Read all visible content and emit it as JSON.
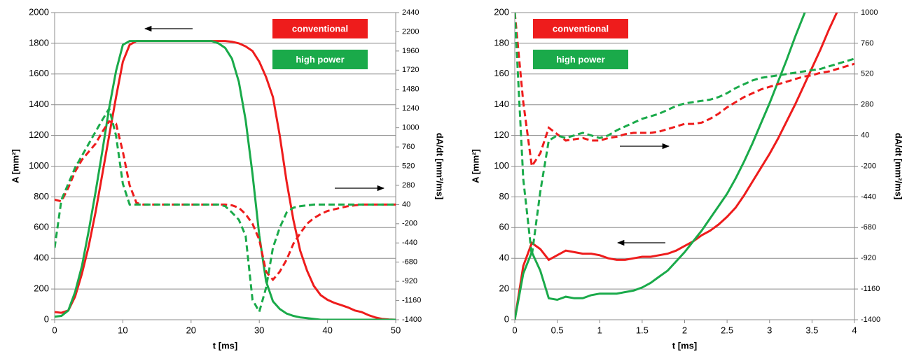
{
  "chart_data": [
    {
      "type": "line",
      "xlim": [
        0,
        50
      ],
      "xticks": [
        0,
        10,
        20,
        30,
        40,
        50
      ],
      "ylim": [
        0,
        2000
      ],
      "yticks": [
        0,
        200,
        400,
        600,
        800,
        1000,
        1200,
        1400,
        1600,
        1800,
        2000
      ],
      "y2lim": [
        -1400,
        2440
      ],
      "y2ticks": [
        -1400,
        -1160,
        -920,
        -680,
        -440,
        -200,
        40,
        280,
        520,
        760,
        1000,
        1240,
        1480,
        1720,
        1960,
        2200,
        2440
      ],
      "xlabel": "t [ms]",
      "ylabel": "A [mm²]",
      "y2label": "dA/dt [mm²/ms]",
      "grid": true,
      "legend_position": "top-right",
      "x": [
        0,
        1,
        2,
        3,
        4,
        5,
        6,
        7,
        8,
        9,
        10,
        11,
        12,
        13,
        14,
        15,
        16,
        17,
        18,
        19,
        20,
        21,
        22,
        23,
        24,
        25,
        26,
        27,
        28,
        29,
        30,
        31,
        32,
        33,
        34,
        35,
        36,
        37,
        38,
        39,
        40,
        41,
        42,
        43,
        44,
        45,
        46,
        47,
        48,
        49,
        50
      ],
      "series": [
        {
          "name": "conventional",
          "color": "#ee1c1c",
          "values": [
            50,
            45,
            60,
            150,
            300,
            480,
            700,
            950,
            1200,
            1450,
            1680,
            1790,
            1815,
            1815,
            1815,
            1815,
            1815,
            1815,
            1815,
            1815,
            1815,
            1815,
            1815,
            1815,
            1815,
            1815,
            1810,
            1800,
            1780,
            1750,
            1680,
            1580,
            1450,
            1200,
            900,
            650,
            450,
            320,
            220,
            160,
            130,
            110,
            95,
            80,
            60,
            50,
            30,
            15,
            5,
            2,
            0
          ]
        },
        {
          "name": "high power",
          "color": "#1aaa4a",
          "values": [
            20,
            25,
            60,
            180,
            350,
            580,
            830,
            1100,
            1380,
            1620,
            1790,
            1815,
            1815,
            1815,
            1815,
            1815,
            1815,
            1815,
            1815,
            1815,
            1815,
            1815,
            1815,
            1815,
            1800,
            1770,
            1700,
            1550,
            1300,
            950,
            550,
            250,
            120,
            70,
            40,
            25,
            15,
            10,
            5,
            0,
            0,
            0,
            0,
            0,
            0,
            0,
            0,
            0,
            0,
            0,
            0
          ]
        },
        {
          "color": "#ee1c1c",
          "dashed": true,
          "axis": "y2",
          "values": [
            100,
            80,
            250,
            450,
            600,
            700,
            800,
            950,
            1080,
            1050,
            700,
            280,
            60,
            40,
            40,
            40,
            40,
            40,
            40,
            40,
            40,
            40,
            40,
            40,
            40,
            40,
            30,
            0,
            -80,
            -200,
            -400,
            -800,
            -900,
            -800,
            -650,
            -450,
            -320,
            -200,
            -130,
            -80,
            -40,
            -20,
            0,
            20,
            30,
            40,
            40,
            40,
            40,
            40,
            40
          ]
        },
        {
          "color": "#1aaa4a",
          "dashed": true,
          "axis": "y2",
          "values": [
            -500,
            100,
            300,
            500,
            650,
            800,
            950,
            1100,
            1240,
            900,
            300,
            40,
            40,
            40,
            40,
            40,
            40,
            40,
            40,
            40,
            40,
            40,
            40,
            40,
            40,
            20,
            -60,
            -150,
            -350,
            -1150,
            -1300,
            -1000,
            -500,
            -250,
            -60,
            0,
            20,
            30,
            40,
            40,
            40,
            40,
            40,
            40,
            40,
            40,
            40,
            40,
            40,
            40,
            40
          ]
        }
      ]
    },
    {
      "type": "line",
      "xlim": [
        0,
        4
      ],
      "xticks": [
        0,
        0.5,
        1,
        1.5,
        2,
        2.5,
        3,
        3.5,
        4
      ],
      "ylim": [
        0,
        200
      ],
      "yticks": [
        0,
        20,
        40,
        60,
        80,
        100,
        120,
        140,
        160,
        180,
        200
      ],
      "y2lim": [
        -1400,
        1000
      ],
      "y2ticks": [
        -1400,
        -1160,
        -920,
        -680,
        -440,
        -200,
        40,
        280,
        520,
        760,
        1000
      ],
      "xlabel": "t [ms]",
      "ylabel": "A [mm²]",
      "y2label": "dA/dt [mm²/ms]",
      "grid": true,
      "legend_position": "top-left",
      "x": [
        0,
        0.1,
        0.2,
        0.3,
        0.4,
        0.5,
        0.6,
        0.7,
        0.8,
        0.9,
        1,
        1.1,
        1.2,
        1.3,
        1.4,
        1.5,
        1.6,
        1.7,
        1.8,
        1.9,
        2,
        2.1,
        2.2,
        2.3,
        2.4,
        2.5,
        2.6,
        2.7,
        2.8,
        2.9,
        3,
        3.1,
        3.2,
        3.3,
        3.4,
        3.5,
        3.6,
        3.7,
        3.8,
        3.9,
        4
      ],
      "series": [
        {
          "name": "conventional",
          "color": "#ee1c1c",
          "values": [
            0,
            35,
            50,
            46,
            39,
            42,
            45,
            44,
            43,
            43,
            42,
            40,
            39,
            39,
            40,
            41,
            41,
            42,
            43,
            45,
            48,
            51,
            55,
            58,
            62,
            67,
            73,
            81,
            90,
            99,
            108,
            118,
            129,
            140,
            152,
            164,
            176,
            189,
            201,
            214,
            227
          ]
        },
        {
          "name": "high power",
          "color": "#1aaa4a",
          "values": [
            0,
            30,
            44,
            32,
            14,
            13,
            15,
            14,
            14,
            16,
            17,
            17,
            17,
            18,
            19,
            21,
            24,
            28,
            32,
            38,
            44,
            51,
            58,
            66,
            74,
            82,
            92,
            103,
            115,
            128,
            141,
            155,
            169,
            184,
            198,
            212,
            226,
            240,
            254,
            268,
            282
          ]
        },
        {
          "color": "#ee1c1c",
          "dashed": true,
          "axis": "y2",
          "values": [
            1000,
            300,
            -200,
            -100,
            100,
            50,
            0,
            10,
            20,
            0,
            0,
            20,
            30,
            50,
            60,
            60,
            60,
            70,
            90,
            110,
            130,
            130,
            140,
            170,
            210,
            260,
            300,
            340,
            370,
            400,
            420,
            440,
            460,
            480,
            500,
            510,
            530,
            540,
            560,
            580,
            600
          ]
        },
        {
          "color": "#1aaa4a",
          "dashed": true,
          "axis": "y2",
          "values": [
            1000,
            -300,
            -900,
            -400,
            0,
            40,
            20,
            40,
            60,
            40,
            20,
            40,
            80,
            110,
            140,
            170,
            190,
            210,
            240,
            270,
            290,
            300,
            310,
            320,
            340,
            370,
            410,
            440,
            470,
            490,
            500,
            510,
            520,
            530,
            540,
            550,
            560,
            580,
            600,
            620,
            640
          ]
        }
      ]
    }
  ]
}
